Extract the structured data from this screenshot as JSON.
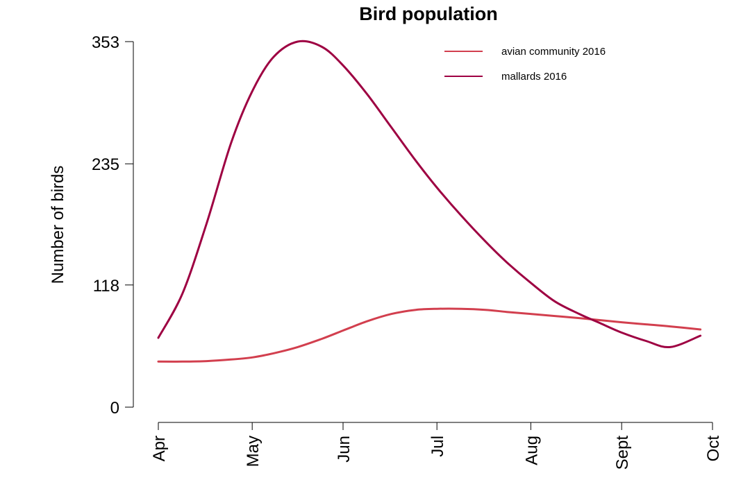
{
  "chart_data": {
    "type": "line",
    "title": "Bird population",
    "xlabel": "",
    "ylabel": "Number of birds",
    "x_ticks": [
      "Apr",
      "May",
      "Jun",
      "Jul",
      "Aug",
      "Sept",
      "Oct"
    ],
    "x_tick_values": [
      0,
      31,
      61,
      92,
      123,
      153,
      183
    ],
    "y_ticks": [
      0,
      118,
      235,
      353
    ],
    "ylim": [
      0,
      353
    ],
    "xlim": [
      0,
      183
    ],
    "grid": false,
    "legend_position": "top-right",
    "series": [
      {
        "name": "avian community 2016",
        "color": "#d23f4e",
        "x": [
          0,
          8,
          16,
          24,
          31,
          38,
          46,
          54,
          61,
          69,
          77,
          85,
          92,
          100,
          108,
          115,
          123,
          131,
          139,
          146,
          153,
          161,
          169,
          179
        ],
        "y": [
          44,
          44,
          44.5,
          46,
          48,
          52,
          58,
          66,
          74,
          83,
          90,
          94,
          95,
          95,
          94,
          92,
          90,
          88,
          86,
          84,
          82,
          80,
          78,
          75
        ]
      },
      {
        "name": "mallards 2016",
        "color": "#9e0142",
        "x": [
          0,
          8,
          16,
          24,
          31,
          38,
          46,
          54,
          61,
          69,
          77,
          85,
          92,
          100,
          108,
          115,
          123,
          131,
          139,
          146,
          153,
          161,
          169,
          179
        ],
        "y": [
          67,
          110,
          178,
          255,
          305,
          338,
          353,
          348,
          330,
          302,
          270,
          238,
          212,
          185,
          160,
          140,
          120,
          102,
          90,
          81,
          72,
          64,
          58,
          69
        ]
      }
    ]
  }
}
